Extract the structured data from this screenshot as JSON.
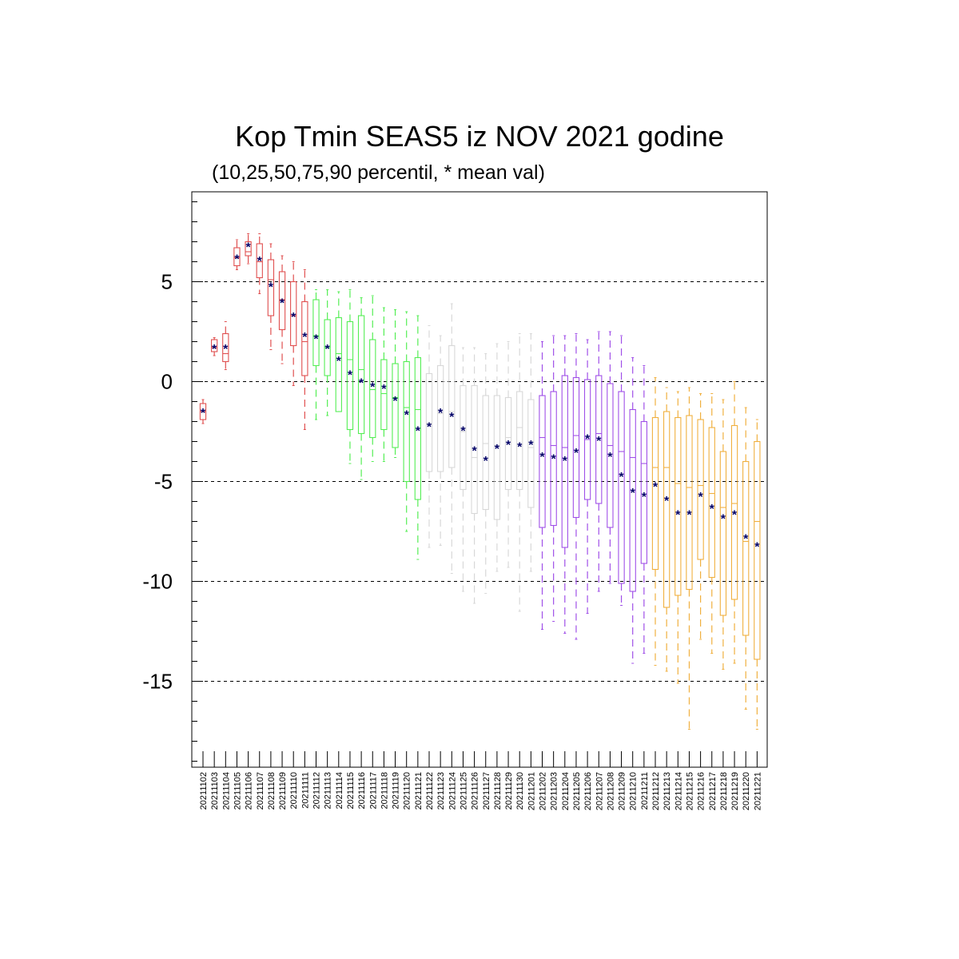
{
  "chart_data": {
    "type": "boxplot",
    "title": "Kop Tmin SEAS5 iz NOV 2021 godine",
    "subtitle": "(10,25,50,75,90 percentil, * mean val)",
    "xlabel": "",
    "ylabel": "",
    "ylim": [
      -19.3,
      9.5
    ],
    "y_ticks": [
      5,
      0,
      -5,
      -10,
      -15
    ],
    "y_tick_labels": [
      "5",
      "0",
      "-5",
      "-10",
      "-15"
    ],
    "grid": "horizontal dashed at labeled ticks",
    "categories": [
      "20211102",
      "20211103",
      "20211104",
      "20211105",
      "20211106",
      "20211107",
      "20211108",
      "20211109",
      "20211110",
      "20211111",
      "20211112",
      "20211113",
      "20211114",
      "20211115",
      "20211116",
      "20211117",
      "20211118",
      "20211119",
      "20211120",
      "20211121",
      "20211122",
      "20211123",
      "20211124",
      "20211125",
      "20211126",
      "20211127",
      "20211128",
      "20211129",
      "20211130",
      "20211201",
      "20211202",
      "20211203",
      "20211204",
      "20211205",
      "20211206",
      "20211207",
      "20211208",
      "20211209",
      "20211210",
      "20211211",
      "20211212",
      "20211213",
      "20211214",
      "20211215",
      "20211216",
      "20211217",
      "20211218",
      "20211219",
      "20211220",
      "20211221"
    ],
    "colors": [
      "#e05050",
      "#e05050",
      "#e05050",
      "#e05050",
      "#e05050",
      "#e05050",
      "#e05050",
      "#e05050",
      "#e05050",
      "#e05050",
      "#55ee55",
      "#55ee55",
      "#55ee55",
      "#55ee55",
      "#55ee55",
      "#55ee55",
      "#55ee55",
      "#55ee55",
      "#55ee55",
      "#55ee55",
      "#d8d8d8",
      "#d8d8d8",
      "#d8d8d8",
      "#d8d8d8",
      "#d8d8d8",
      "#d8d8d8",
      "#d8d8d8",
      "#d8d8d8",
      "#d8d8d8",
      "#d8d8d8",
      "#a050e8",
      "#a050e8",
      "#a050e8",
      "#a050e8",
      "#a050e8",
      "#a050e8",
      "#a050e8",
      "#a050e8",
      "#a050e8",
      "#a050e8",
      "#f0b040",
      "#f0b040",
      "#f0b040",
      "#f0b040",
      "#f0b040",
      "#f0b040",
      "#f0b040",
      "#f0b040",
      "#f0b040",
      "#f0b040"
    ],
    "mean_color": "#000066",
    "p10": [
      -2.1,
      1.3,
      0.6,
      5.6,
      5.9,
      4.4,
      1.6,
      0.9,
      -0.2,
      -2.4,
      -1.9,
      -1.7,
      -1.5,
      -4.1,
      -4.9,
      -4.0,
      -4.0,
      -3.8,
      -7.5,
      -8.9,
      -8.3,
      -8.2,
      -9.6,
      -10.5,
      -11.1,
      -10.6,
      -9.5,
      -9.3,
      -11.5,
      -9.5,
      -12.4,
      -12.0,
      -12.6,
      -12.9,
      -11.6,
      -10.5,
      -10.1,
      -11.2,
      -14.1,
      -13.6,
      -14.2,
      -14.5,
      -15.1,
      -17.4,
      -12.9,
      -13.6,
      -14.4,
      -14.1,
      -16.4,
      -17.4
    ],
    "p25": [
      -1.9,
      1.5,
      1.0,
      5.8,
      6.3,
      5.2,
      3.3,
      2.6,
      1.8,
      0.3,
      0.8,
      0.3,
      -1.5,
      -2.4,
      -2.6,
      -2.8,
      -2.4,
      -3.3,
      -5.0,
      -5.9,
      -4.5,
      -4.5,
      -4.3,
      -5.4,
      -6.6,
      -6.4,
      -6.9,
      -5.4,
      -5.4,
      -6.3,
      -7.3,
      -7.2,
      -8.3,
      -6.8,
      -5.9,
      -6.1,
      -7.3,
      -10.1,
      -10.5,
      -9.1,
      -9.4,
      -11.3,
      -10.7,
      -10.4,
      -8.9,
      -9.8,
      -11.7,
      -10.9,
      -12.7,
      -13.9
    ],
    "p50": [
      -1.5,
      1.7,
      1.4,
      6.2,
      6.5,
      6.0,
      5.1,
      4.1,
      3.3,
      2.0,
      2.3,
      1.7,
      1.4,
      1.1,
      0.6,
      -0.4,
      -0.6,
      -0.8,
      -1.3,
      -1.4,
      -2.1,
      -1.6,
      -1.5,
      -2.5,
      -3.8,
      -3.1,
      -3.2,
      -2.8,
      -2.3,
      -3.3,
      -2.8,
      -3.2,
      -3.3,
      -2.7,
      -2.9,
      -2.6,
      -3.2,
      -3.5,
      -3.8,
      -4.1,
      -4.3,
      -4.3,
      -5.1,
      -5.3,
      -5.2,
      -5.6,
      -6.3,
      -6.1,
      -8.0,
      -7.0
    ],
    "p75": [
      -1.1,
      2.1,
      2.4,
      6.7,
      7.0,
      6.9,
      6.1,
      5.5,
      5.0,
      4.0,
      4.1,
      3.1,
      3.2,
      3.0,
      3.3,
      2.1,
      1.1,
      0.9,
      1.0,
      1.2,
      0.4,
      0.8,
      1.8,
      -0.2,
      -0.2,
      -0.7,
      -0.7,
      -0.8,
      -0.5,
      -0.9,
      -0.7,
      -0.5,
      0.3,
      0.2,
      0.1,
      0.3,
      -0.1,
      -0.5,
      -1.4,
      -2.0,
      -1.8,
      -1.5,
      -1.8,
      -1.7,
      -1.9,
      -2.3,
      -3.5,
      -2.2,
      -4.0,
      -3.0
    ],
    "p90": [
      -0.9,
      2.2,
      3.0,
      7.1,
      7.4,
      7.4,
      6.9,
      6.3,
      6.0,
      5.6,
      4.6,
      4.6,
      4.5,
      4.6,
      4.2,
      4.3,
      3.7,
      3.6,
      3.5,
      3.3,
      2.8,
      2.3,
      3.9,
      1.7,
      1.7,
      1.4,
      1.9,
      2.0,
      2.4,
      2.4,
      2.0,
      2.3,
      2.3,
      2.4,
      2.1,
      2.5,
      2.5,
      2.3,
      1.2,
      0.8,
      0.2,
      -0.3,
      -0.5,
      -0.3,
      -0.6,
      -0.6,
      -0.9,
      0.0,
      -1.3,
      -1.9
    ],
    "mean": [
      -1.5,
      1.7,
      1.7,
      6.2,
      6.8,
      6.1,
      4.8,
      4.0,
      3.3,
      2.3,
      2.2,
      1.7,
      1.1,
      0.4,
      0.0,
      -0.2,
      -0.3,
      -0.9,
      -1.6,
      -2.4,
      -2.2,
      -1.5,
      -1.7,
      -2.4,
      -3.4,
      -3.9,
      -3.3,
      -3.1,
      -3.2,
      -3.1,
      -3.7,
      -3.8,
      -3.9,
      -3.5,
      -2.8,
      -2.9,
      -3.7,
      -4.7,
      -5.5,
      -5.7,
      -5.2,
      -5.9,
      -6.6,
      -6.6,
      -5.7,
      -6.3,
      -6.8,
      -6.6,
      -7.8,
      -8.2
    ]
  }
}
